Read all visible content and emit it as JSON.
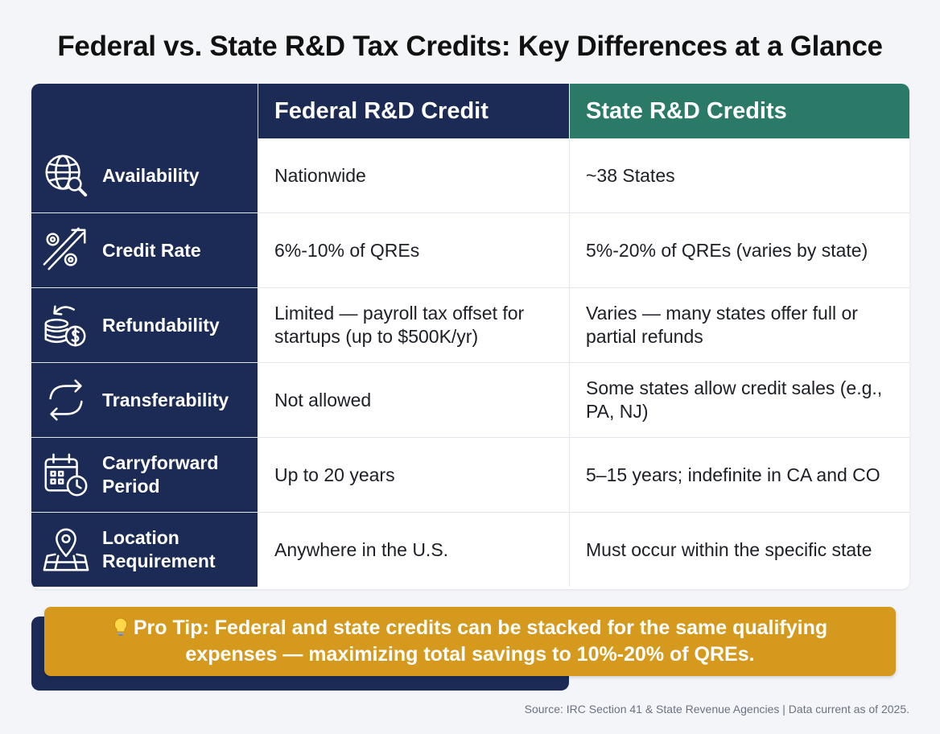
{
  "title": "Federal vs. State R&D Tax Credits: Key Differences at a Glance",
  "table": {
    "headers": {
      "federal": "Federal R&D Credit",
      "state": "State R&D Credits"
    },
    "rows": [
      {
        "icon": "globe-search-icon",
        "label": "Availability",
        "federal": "Nationwide",
        "state": "~38 States"
      },
      {
        "icon": "percent-arrow-icon",
        "label": "Credit Rate",
        "federal": "6%-10% of QREs",
        "state": "5%-20% of QREs (varies by state)"
      },
      {
        "icon": "coins-refund-icon",
        "label": "Refundability",
        "federal": "Limited — payroll tax offset for startups (up to $500K/yr)",
        "state": "Varies — many states offer full or partial refunds"
      },
      {
        "icon": "transfer-arrows-icon",
        "label": "Transferability",
        "federal": "Not allowed",
        "state": "Some states allow credit sales (e.g., PA, NJ)"
      },
      {
        "icon": "calendar-clock-icon",
        "label": "Carryforward Period",
        "federal": "Up to 20 years",
        "state": "5–15 years; indefinite in CA and CO"
      },
      {
        "icon": "map-pin-icon",
        "label": "Location Requirement",
        "federal": "Anywhere in the U.S.",
        "state": "Must occur within the specific state"
      }
    ]
  },
  "pro_tip": {
    "icon": "lightbulb-icon",
    "text": "Pro Tip: Federal and state credits can be stacked for the same qualifying expenses — maximizing total savings to 10%-20% of QREs."
  },
  "source": "Source: IRC Section 41 & State Revenue Agencies | Data current as of 2025.",
  "colors": {
    "navy": "#1b2b55",
    "teal": "#2a7a67",
    "gold": "#d59a1d"
  }
}
